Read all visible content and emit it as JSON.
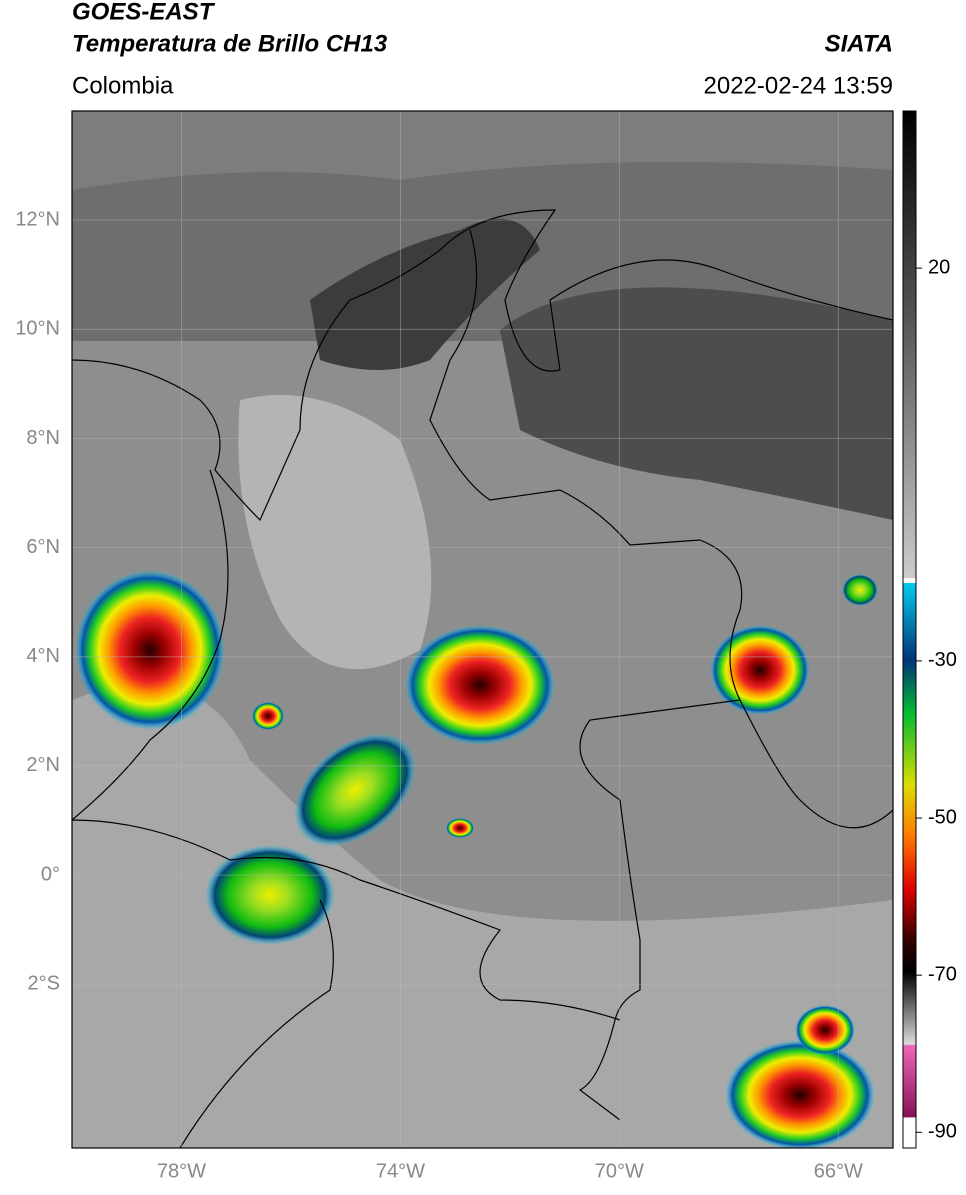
{
  "header": {
    "title": "GOES-EAST",
    "subtitle": "Temperatura de Brillo CH13",
    "source": "SIATA",
    "region": "Colombia",
    "timestamp": "2022-02-24 13:59"
  },
  "map": {
    "lon_range": [
      -80,
      -65
    ],
    "lat_range": [
      -5,
      14
    ],
    "lat_ticks": [
      {
        "value": 12,
        "label": "12°N"
      },
      {
        "value": 10,
        "label": "10°N"
      },
      {
        "value": 8,
        "label": "8°N"
      },
      {
        "value": 6,
        "label": "6°N"
      },
      {
        "value": 4,
        "label": "4°N"
      },
      {
        "value": 2,
        "label": "2°N"
      },
      {
        "value": 0,
        "label": "0°"
      },
      {
        "value": -2,
        "label": "2°S"
      }
    ],
    "lon_ticks": [
      {
        "value": -78,
        "label": "78°W"
      },
      {
        "value": -74,
        "label": "74°W"
      },
      {
        "value": -70,
        "label": "70°W"
      },
      {
        "value": -66,
        "label": "66°W"
      }
    ]
  },
  "colorbar": {
    "range": [
      -92,
      40
    ],
    "ticks": [
      20,
      -30,
      -50,
      -70,
      -90
    ]
  }
}
